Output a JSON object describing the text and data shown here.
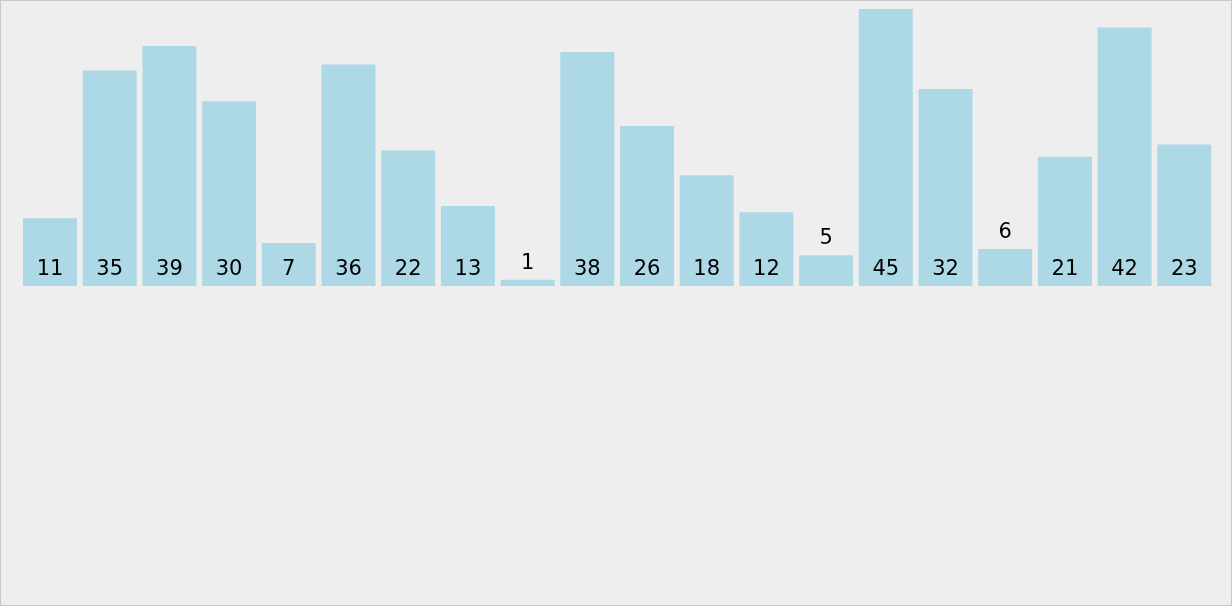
{
  "chart_data": {
    "type": "bar",
    "categories": [
      null,
      null,
      null,
      null,
      null,
      null,
      null,
      null,
      null,
      null,
      null,
      null,
      null,
      null,
      null,
      null,
      null,
      null,
      null,
      null
    ],
    "values": [
      11,
      35,
      39,
      30,
      7,
      36,
      22,
      13,
      1,
      38,
      26,
      18,
      12,
      5,
      45,
      32,
      6,
      21,
      42,
      23
    ],
    "color": "#add8e6",
    "data_labels": true
  }
}
